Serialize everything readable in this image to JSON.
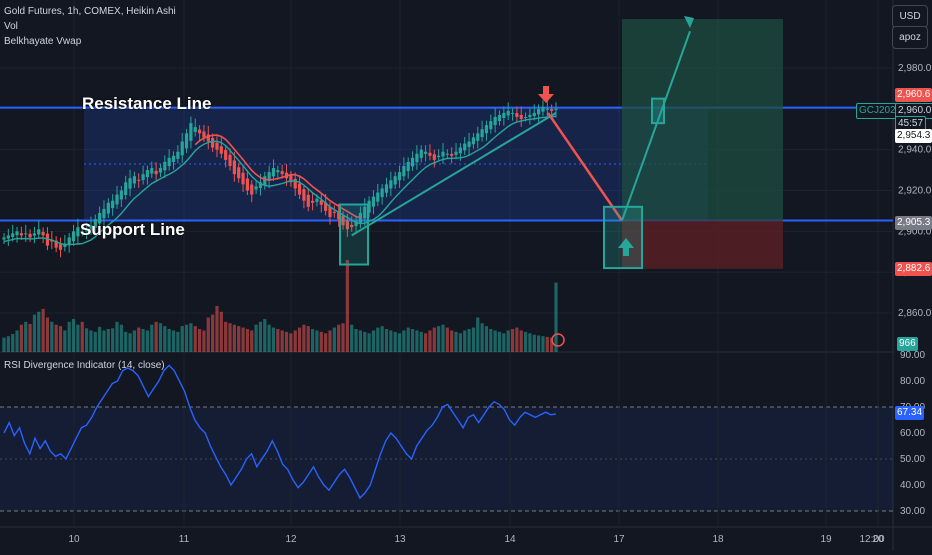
{
  "header": {
    "symbol_line": "Gold Futures, 1h, COMEX, Heikin Ashi",
    "vol_label": "Vol",
    "vwap_label": "Belkhayate Vwap",
    "currency_button": "USD",
    "scale_button": "apoz"
  },
  "annotations": {
    "resistance": "Resistance Line",
    "support": "Support Line"
  },
  "price_axis": {
    "ticks": [
      "2,980.0",
      "2,960.0",
      "2,940.0",
      "2,920.0",
      "2,900.0",
      "2,880.0",
      "2,860.0"
    ],
    "tick_values": [
      2980,
      2960,
      2940,
      2920,
      2900,
      2880,
      2860
    ],
    "tags": {
      "target": "2,960.6",
      "last": "2,960.0",
      "countdown": "45:57",
      "level2": "2,954.3",
      "entry": "2,905.3",
      "stop": "2,882.6",
      "symbol": "GCJ2025",
      "volume": "966"
    }
  },
  "rsi_panel": {
    "title": "RSI Divergence Indicator (14, close)",
    "ticks": [
      "90.00",
      "80.00",
      "70.00",
      "60.00",
      "50.00",
      "40.00",
      "30.00"
    ],
    "tick_values": [
      90,
      80,
      70,
      60,
      50,
      40,
      30
    ],
    "value_tag": "67.34"
  },
  "time_axis": {
    "labels": [
      "10",
      "11",
      "12",
      "13",
      "14",
      "17",
      "18",
      "19",
      "20",
      "12:00"
    ]
  },
  "colors": {
    "bull": "#26a69a",
    "bear": "#ef5350",
    "band": "#2962ff",
    "rsi": "#2962ff",
    "vwap": "#ef5350",
    "target_zone": "#1e4d40",
    "stop_zone": "#5b1f24"
  },
  "chart_data": [
    {
      "type": "candlestick",
      "title": "Gold Futures, 1h, COMEX, Heikin Ashi",
      "ylim": [
        2852,
        3000
      ],
      "levels": {
        "resistance": 2960.6,
        "support": 2905.3,
        "stop": 2882.6,
        "target_zone_top": 3004
      },
      "close": [
        2897,
        2898,
        2899,
        2900,
        2898,
        2899,
        2897,
        2899,
        2901,
        2898,
        2893,
        2895,
        2892,
        2891,
        2894,
        2897,
        2900,
        2902,
        2900,
        2901,
        2903,
        2906,
        2909,
        2911,
        2914,
        2915,
        2918,
        2920,
        2924,
        2926,
        2927,
        2925,
        2928,
        2930,
        2931,
        2928,
        2931,
        2934,
        2936,
        2937,
        2939,
        2944,
        2948,
        2953,
        2951,
        2948,
        2946,
        2944,
        2941,
        2940,
        2938,
        2935,
        2932,
        2928,
        2926,
        2923,
        2920,
        2918,
        2922,
        2924,
        2927,
        2929,
        2931,
        2930,
        2928,
        2926,
        2924,
        2921,
        2918,
        2915,
        2912,
        2914,
        2916,
        2913,
        2910,
        2907,
        2909,
        2906,
        2903,
        2901,
        2902,
        2905,
        2909,
        2912,
        2915,
        2917,
        2919,
        2921,
        2923,
        2925,
        2927,
        2929,
        2932,
        2934,
        2936,
        2938,
        2940,
        2939,
        2937,
        2935,
        2937,
        2939,
        2938,
        2937,
        2939,
        2941,
        2943,
        2944,
        2946,
        2948,
        2950,
        2952,
        2954,
        2956,
        2957,
        2958,
        2959,
        2958,
        2956,
        2955,
        2956,
        2957,
        2958,
        2960,
        2961,
        2960,
        2959,
        2960
      ]
    },
    {
      "type": "bar",
      "title": "Vol",
      "values": [
        200,
        220,
        250,
        300,
        380,
        420,
        390,
        520,
        560,
        600,
        480,
        420,
        380,
        360,
        300,
        420,
        460,
        380,
        420,
        330,
        300,
        280,
        350,
        300,
        320,
        330,
        420,
        380,
        280,
        260,
        300,
        340,
        320,
        300,
        380,
        420,
        400,
        360,
        320,
        300,
        280,
        360,
        380,
        400,
        360,
        320,
        300,
        480,
        520,
        640,
        560,
        420,
        400,
        380,
        360,
        340,
        320,
        300,
        380,
        420,
        460,
        380,
        340,
        320,
        300,
        280,
        260,
        300,
        340,
        380,
        360,
        320,
        300,
        280,
        260,
        300,
        340,
        380,
        400,
        1280,
        380,
        320,
        300,
        280,
        260,
        300,
        340,
        360,
        320,
        300,
        280,
        260,
        300,
        340,
        320,
        300,
        280,
        260,
        300,
        340,
        360,
        380,
        340,
        300,
        280,
        260,
        300,
        320,
        340,
        480,
        400,
        360,
        320,
        300,
        280,
        260,
        300,
        320,
        340,
        300,
        280,
        260,
        240,
        230,
        220,
        210,
        200,
        966
      ]
    },
    {
      "type": "line",
      "title": "RSI Divergence Indicator (14, close)",
      "ylim": [
        25,
        92
      ],
      "values": [
        60,
        64,
        59,
        62,
        56,
        52,
        58,
        54,
        57,
        53,
        51,
        52,
        50,
        54,
        58,
        62,
        63,
        66,
        70,
        73,
        76,
        79,
        80,
        84,
        85,
        84,
        82,
        78,
        74,
        77,
        80,
        84,
        86,
        84,
        80,
        76,
        70,
        65,
        62,
        60,
        55,
        51,
        47,
        44,
        40,
        43,
        46,
        50,
        52,
        47,
        50,
        53,
        57,
        53,
        48,
        46,
        42,
        39,
        41,
        44,
        47,
        43,
        40,
        38,
        41,
        44,
        46,
        43,
        39,
        35,
        37,
        40,
        46,
        52,
        57,
        60,
        58,
        55,
        52,
        50,
        55,
        58,
        61,
        63,
        66,
        70,
        71,
        68,
        65,
        62,
        66,
        67,
        64,
        67,
        70,
        72,
        71,
        69,
        65,
        63,
        66,
        68,
        67,
        66,
        67,
        68,
        67,
        67.34
      ]
    }
  ]
}
